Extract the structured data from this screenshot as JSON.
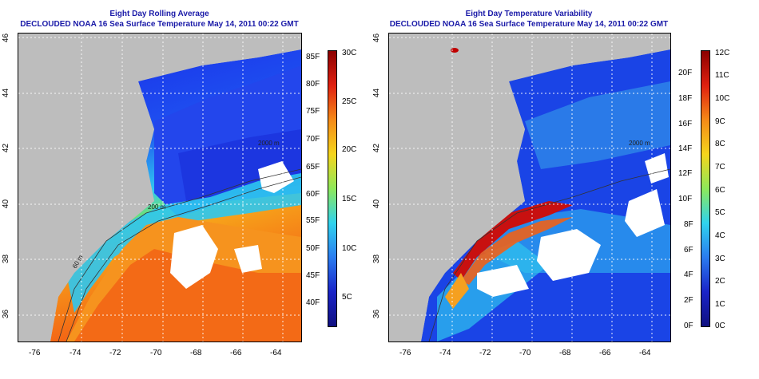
{
  "left": {
    "title": "Eight Day Rolling Average",
    "subtitle": "DECLOUDED NOAA 16 Sea Surface Temperature May 14, 2011 00:22 GMT",
    "contour_labels": [
      "200 m",
      "60 m",
      "2000 m"
    ],
    "colorbar_f": [
      "85F",
      "80F",
      "75F",
      "70F",
      "65F",
      "60F",
      "55F",
      "50F",
      "45F",
      "40F"
    ],
    "colorbar_c": [
      "30C",
      "25C",
      "20C",
      "15C",
      "10C",
      "5C"
    ]
  },
  "right": {
    "title": "Eight Day Temperature Variability",
    "subtitle": "DECLOUDED NOAA 16 Sea Surface Temperature May 14, 2011 00:22 GMT",
    "contour_labels": [
      "2000 m"
    ],
    "colorbar_f": [
      "20F",
      "18F",
      "16F",
      "14F",
      "12F",
      "10F",
      "8F",
      "6F",
      "4F",
      "2F",
      "0F"
    ],
    "colorbar_c": [
      "12C",
      "11C",
      "10C",
      "9C",
      "8C",
      "7C",
      "6C",
      "5C",
      "4C",
      "3C",
      "2C",
      "1C",
      "0C"
    ]
  },
  "axes": {
    "x_ticks": [
      "-76",
      "-74",
      "-72",
      "-70",
      "-68",
      "-66",
      "-64"
    ],
    "y_ticks": [
      "46",
      "44",
      "42",
      "40",
      "38",
      "36"
    ]
  },
  "colors": {
    "land": "#bdbdbd",
    "title_blue": "#1a1aa8"
  }
}
